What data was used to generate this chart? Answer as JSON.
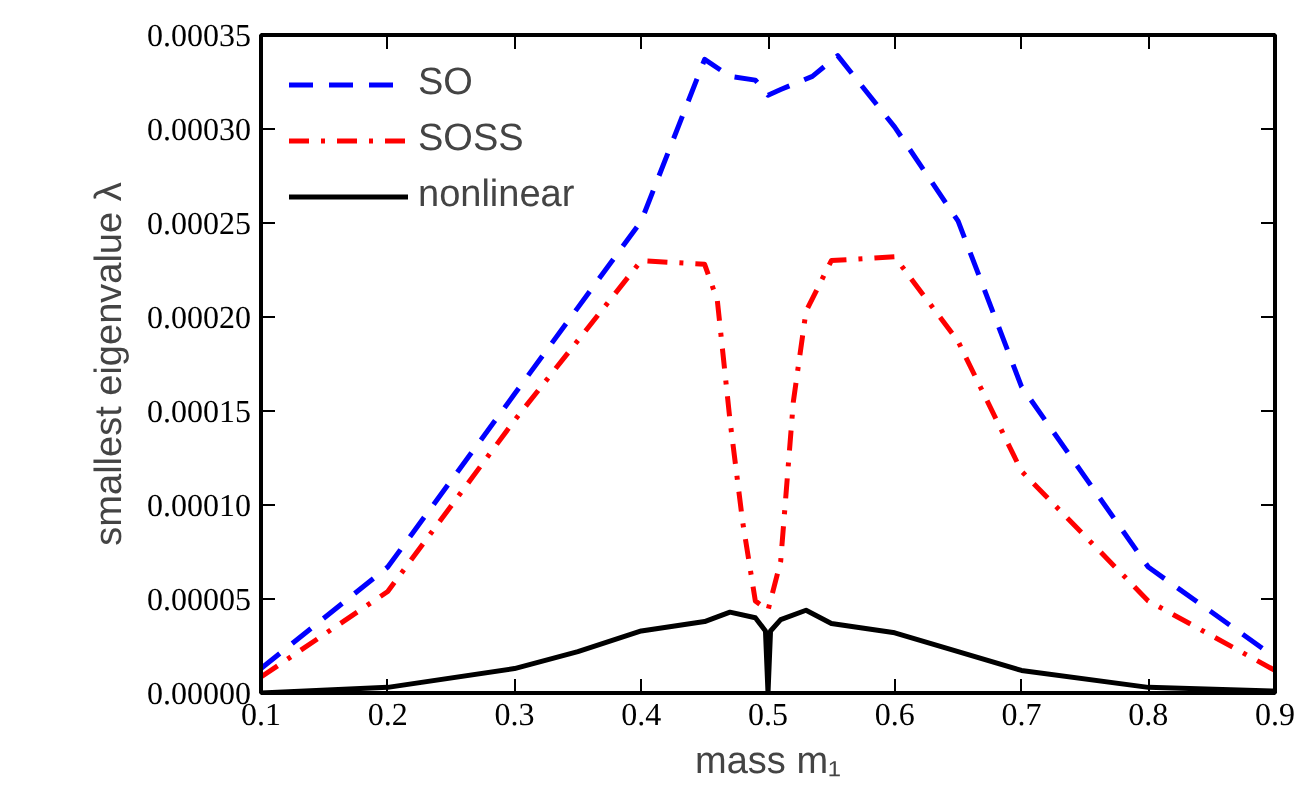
{
  "chart_data": {
    "type": "line",
    "xlabel": "mass m₁",
    "ylabel": "smallest eigenvalue λ",
    "legend": "top left",
    "grid": false,
    "xlim": [
      0.1,
      0.9
    ],
    "xticks": [
      0.1,
      0.2,
      0.3,
      0.4,
      0.5,
      0.6,
      0.7,
      0.8,
      0.9
    ],
    "ylim": [
      0,
      0.00035
    ],
    "yticks": [
      {
        "value": 0,
        "label": "0.00000"
      },
      {
        "value": 5e-05,
        "label": "0.00005"
      },
      {
        "value": 0.0001,
        "label": "0.00010"
      },
      {
        "value": 0.00015,
        "label": "0.00015"
      },
      {
        "value": 0.0002,
        "label": "0.00020"
      },
      {
        "value": 0.00025,
        "label": "0.00025"
      },
      {
        "value": 0.0003,
        "label": "0.00030"
      },
      {
        "value": 0.00035,
        "label": "0.00035"
      }
    ],
    "series": [
      {
        "name": "SO",
        "color": "#0000ff",
        "line_style": "dashed",
        "x": [
          0.1,
          0.2,
          0.3,
          0.4,
          0.45,
          0.47,
          0.49,
          0.5,
          0.51,
          0.535,
          0.555,
          0.6,
          0.65,
          0.7,
          0.8,
          0.9
        ],
        "values": [
          1.3e-05,
          6.7e-05,
          0.000159,
          0.000251,
          0.000337,
          0.000328,
          0.000326,
          0.000318,
          0.000321,
          0.000328,
          0.000339,
          0.000301,
          0.000251,
          0.000163,
          6.7e-05,
          1.9e-05
        ]
      },
      {
        "name": "SOSS",
        "color": "#ff0000",
        "line_style": "dashdot",
        "x": [
          0.1,
          0.2,
          0.3,
          0.4,
          0.45,
          0.46,
          0.47,
          0.48,
          0.49,
          0.5,
          0.51,
          0.52,
          0.53,
          0.55,
          0.6,
          0.65,
          0.7,
          0.8,
          0.9
        ],
        "values": [
          8.5e-06,
          5.4e-05,
          0.000145,
          0.00023,
          0.000228,
          0.000209,
          0.000145,
          9.1e-05,
          4.9e-05,
          4.4e-05,
          7e-05,
          0.000155,
          0.000203,
          0.00023,
          0.000232,
          0.000187,
          0.000118,
          4.9e-05,
          1.2e-05
        ]
      },
      {
        "name": "nonlinear",
        "color": "#000000",
        "line_style": "solid",
        "x": [
          0.1,
          0.2,
          0.3,
          0.35,
          0.4,
          0.45,
          0.47,
          0.49,
          0.498,
          0.5,
          0.502,
          0.51,
          0.53,
          0.55,
          0.6,
          0.65,
          0.7,
          0.8,
          0.9
        ],
        "values": [
          0,
          3e-06,
          1.3e-05,
          2.2e-05,
          3.3e-05,
          3.8e-05,
          4.3e-05,
          4e-05,
          3.3e-05,
          0,
          3.3e-05,
          3.9e-05,
          4.4e-05,
          3.7e-05,
          3.2e-05,
          2.2e-05,
          1.2e-05,
          3e-06,
          1e-06
        ]
      }
    ]
  }
}
